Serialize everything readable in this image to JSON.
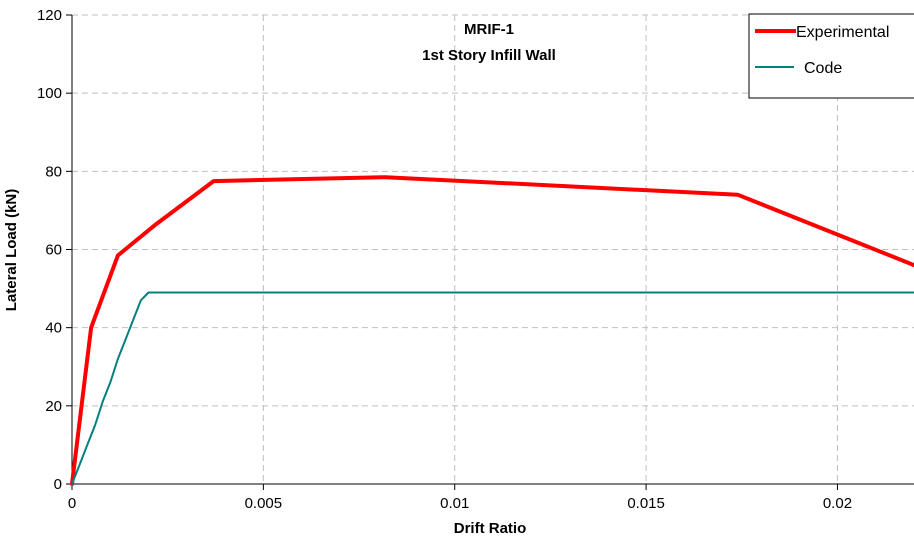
{
  "chart_data": {
    "type": "line",
    "title": "MRIF-1",
    "subtitle": "1st Story Infill Wall",
    "xlabel": "Drift Ratio",
    "ylabel": "Lateral Load (kN)",
    "xlim": [
      0,
      0.022
    ],
    "ylim": [
      0,
      120
    ],
    "x_ticks": [
      0,
      0.005,
      0.01,
      0.015,
      0.02
    ],
    "x_tick_labels": [
      "0",
      "0.005",
      "0.01",
      "0.015",
      "0.02"
    ],
    "y_ticks": [
      0,
      20,
      40,
      60,
      80,
      100,
      120
    ],
    "y_tick_labels": [
      "0",
      "20",
      "40",
      "60",
      "80",
      "100",
      "120"
    ],
    "grid": true,
    "grid_style": "dashed",
    "legend_position": "top-right",
    "series": [
      {
        "name": "Experimental",
        "color": "#ff0000",
        "points": [
          [
            0,
            0
          ],
          [
            0.0005,
            40
          ],
          [
            0.0012,
            58.5
          ],
          [
            0.0022,
            66.5
          ],
          [
            0.0037,
            77.5
          ],
          [
            0.0082,
            78.5
          ],
          [
            0.0174,
            74
          ],
          [
            0.022,
            56
          ]
        ]
      },
      {
        "name": "Code",
        "color": "#008080",
        "points": [
          [
            0,
            0
          ],
          [
            0.0002,
            5
          ],
          [
            0.0004,
            10
          ],
          [
            0.0006,
            15
          ],
          [
            0.0008,
            21
          ],
          [
            0.001,
            26
          ],
          [
            0.0012,
            32
          ],
          [
            0.0014,
            37
          ],
          [
            0.0016,
            42
          ],
          [
            0.0018,
            47
          ],
          [
            0.002,
            49
          ],
          [
            0.022,
            49
          ]
        ]
      }
    ]
  }
}
